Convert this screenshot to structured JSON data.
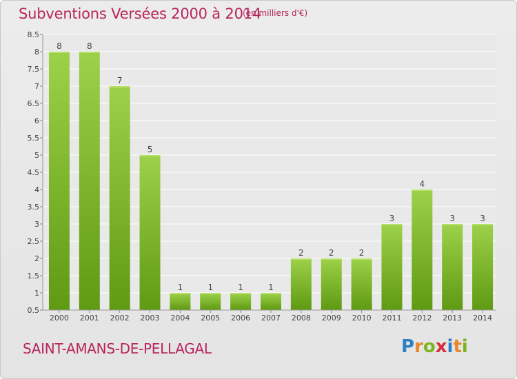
{
  "header": {
    "title": "Subventions Versées 2000 à 2014",
    "unit": "(en milliers d'€)"
  },
  "footer": {
    "commune": "SAINT-AMANS-DE-PELLAGAL",
    "logo_letters": [
      "P",
      "r",
      "o",
      "x",
      "i",
      "t",
      "i"
    ],
    "logo_colors": [
      "#2e7fc4",
      "#e8862a",
      "#7ab51d",
      "#d62f3a",
      "#2e7fc4",
      "#e8862a",
      "#7ab51d"
    ]
  },
  "colors": {
    "title": "#b8255b",
    "bar_top": "#9dd14a",
    "bar_bottom": "#5f9a12",
    "grid": "#ffffff",
    "axis_text": "#444444"
  },
  "chart_data": {
    "type": "bar",
    "categories": [
      "2000",
      "2001",
      "2002",
      "2003",
      "2004",
      "2005",
      "2006",
      "2007",
      "2008",
      "2009",
      "2010",
      "2011",
      "2012",
      "2013",
      "2014"
    ],
    "values": [
      8,
      8,
      7,
      5,
      1,
      1,
      1,
      1,
      2,
      2,
      2,
      3,
      4,
      3,
      3
    ],
    "data_labels": [
      "8",
      "8",
      "7",
      "5",
      "1",
      "1",
      "1",
      "1",
      "2",
      "2",
      "2",
      "3",
      "4",
      "3",
      "3"
    ],
    "y_ticks": [
      "0.5",
      "1",
      "1.5",
      "2",
      "2.5",
      "3",
      "3.5",
      "4",
      "4.5",
      "5",
      "5.5",
      "6",
      "6.5",
      "7",
      "7.5",
      "8",
      "8.5"
    ],
    "y_tick_values": [
      0.5,
      1,
      1.5,
      2,
      2.5,
      3,
      3.5,
      4,
      4.5,
      5,
      5.5,
      6,
      6.5,
      7,
      7.5,
      8,
      8.5
    ],
    "ylim": [
      0.5,
      8.5
    ],
    "grid": true,
    "title": "Subventions Versées 2000 à 2014",
    "xlabel": "",
    "ylabel": ""
  }
}
